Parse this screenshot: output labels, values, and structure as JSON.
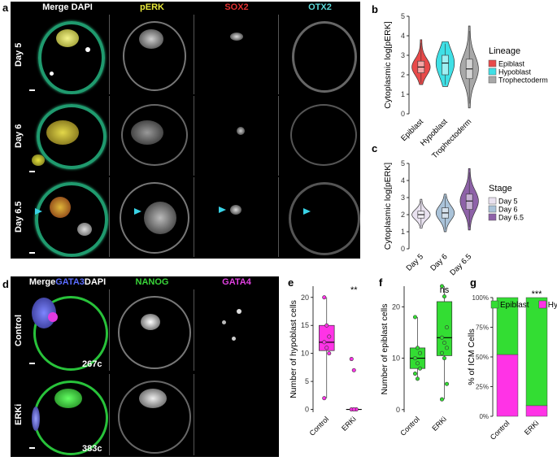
{
  "panel_a": {
    "letter": "a",
    "headers": {
      "merge": "Merge DAPI",
      "perk": "pERK",
      "sox2": "SOX2",
      "otx2": "OTX2"
    },
    "header_colors": {
      "merge": "#ffffff",
      "perk": "#e8e83a",
      "sox2": "#e03030",
      "otx2": "#5ad7d7"
    },
    "rows": [
      "Day 5",
      "Day 6",
      "Day 6.5"
    ]
  },
  "panel_d": {
    "letter": "d",
    "merge_parts": [
      "Merge",
      "GATA3",
      "DAPI"
    ],
    "merge_colors": [
      "#ffffff",
      "#5a6cff",
      "#ffffff"
    ],
    "headers": {
      "nanog": "NANOG",
      "gata4": "GATA4"
    },
    "header_colors": {
      "nanog": "#39d639",
      "gata4": "#e040e0"
    },
    "rows": [
      "Control",
      "ERKi"
    ],
    "cell_counts": [
      "267c",
      "383c"
    ]
  },
  "chart_data": [
    {
      "panel": "b",
      "type": "violin",
      "categories": [
        "Epiblast",
        "Hypoblast",
        "Trophectoderm"
      ],
      "ylabel": "Cytoplasmic log[pERK]",
      "ylim": [
        0,
        5
      ],
      "yticks": [
        0,
        1,
        2,
        3,
        4,
        5
      ],
      "legend_title": "Lineage",
      "legend_position": "right",
      "series": [
        {
          "name": "Epiblast",
          "color": "#e84a4a",
          "min": 1.5,
          "q1": 2.1,
          "median": 2.4,
          "q3": 2.7,
          "max": 3.8
        },
        {
          "name": "Hypoblast",
          "color": "#3fe0e6",
          "min": 1.4,
          "q1": 2.0,
          "median": 2.6,
          "q3": 3.0,
          "max": 3.7
        },
        {
          "name": "Trophectoderm",
          "color": "#a8a8a8",
          "min": 0.3,
          "q1": 1.8,
          "median": 2.3,
          "q3": 2.8,
          "max": 4.5
        }
      ]
    },
    {
      "panel": "c",
      "type": "violin",
      "categories": [
        "Day 5",
        "Day 6",
        "Day 6.5"
      ],
      "ylabel": "Cytoplasmic log[pERK]",
      "ylim": [
        0,
        5
      ],
      "yticks": [
        0,
        1,
        2,
        3,
        4,
        5
      ],
      "legend_title": "Stage",
      "legend_position": "right",
      "series": [
        {
          "name": "Day 5",
          "color": "#e9e2f0",
          "min": 1.2,
          "q1": 1.8,
          "median": 2.0,
          "q3": 2.2,
          "max": 2.9
        },
        {
          "name": "Day 6",
          "color": "#aac3d9",
          "min": 1.0,
          "q1": 1.8,
          "median": 2.1,
          "q3": 2.4,
          "max": 3.2
        },
        {
          "name": "Day 6.5",
          "color": "#8e62a8",
          "min": 1.1,
          "q1": 2.3,
          "median": 2.8,
          "q3": 3.2,
          "max": 4.7
        }
      ]
    },
    {
      "panel": "e",
      "type": "box",
      "categories": [
        "Control",
        "ERKi"
      ],
      "ylabel": "Number of hypoblast cells",
      "ylim": [
        -0.5,
        22
      ],
      "yticks": [
        0,
        5,
        10,
        15,
        20
      ],
      "significance": "**",
      "color": "#ff33e6",
      "boxes": [
        {
          "name": "Control",
          "min": 2,
          "q1": 10.5,
          "median": 12,
          "q3": 15,
          "max": 20,
          "points": [
            20,
            15,
            13,
            12,
            11,
            10,
            2
          ]
        },
        {
          "name": "ERKi",
          "min": 0,
          "q1": 0,
          "median": 0,
          "q3": 0,
          "max": 0,
          "points": [
            9,
            7,
            0,
            0,
            0
          ]
        }
      ]
    },
    {
      "panel": "f",
      "type": "box",
      "categories": [
        "Control",
        "ERKi"
      ],
      "ylabel": "Number of epiblast cells",
      "ylim": [
        -0.5,
        24
      ],
      "yticks": [
        0,
        10,
        20
      ],
      "significance": "ns",
      "color": "#33dd33",
      "boxes": [
        {
          "name": "Control",
          "min": 6,
          "q1": 8,
          "median": 10,
          "q3": 12,
          "max": 18,
          "points": [
            18,
            12,
            11,
            10,
            9,
            8,
            7,
            6
          ]
        },
        {
          "name": "ERKi",
          "min": 2,
          "q1": 10.5,
          "median": 14,
          "q3": 21,
          "max": 24,
          "points": [
            24,
            22,
            16,
            14,
            13,
            12,
            11,
            10,
            5,
            2
          ]
        }
      ]
    },
    {
      "panel": "g",
      "type": "stacked_bar",
      "categories": [
        "Control",
        "ERKi"
      ],
      "ylabel": "% of ICM Cells",
      "ylim": [
        0,
        100
      ],
      "yticks": [
        "0%",
        "25%",
        "50%",
        "75%",
        "100%"
      ],
      "significance": "***",
      "legend_position": "top",
      "series": [
        {
          "name": "Epiblast",
          "color": "#33dd33",
          "values": [
            48,
            91
          ]
        },
        {
          "name": "Hypoblast",
          "color": "#ff33e6",
          "values": [
            52,
            9
          ]
        }
      ]
    }
  ]
}
